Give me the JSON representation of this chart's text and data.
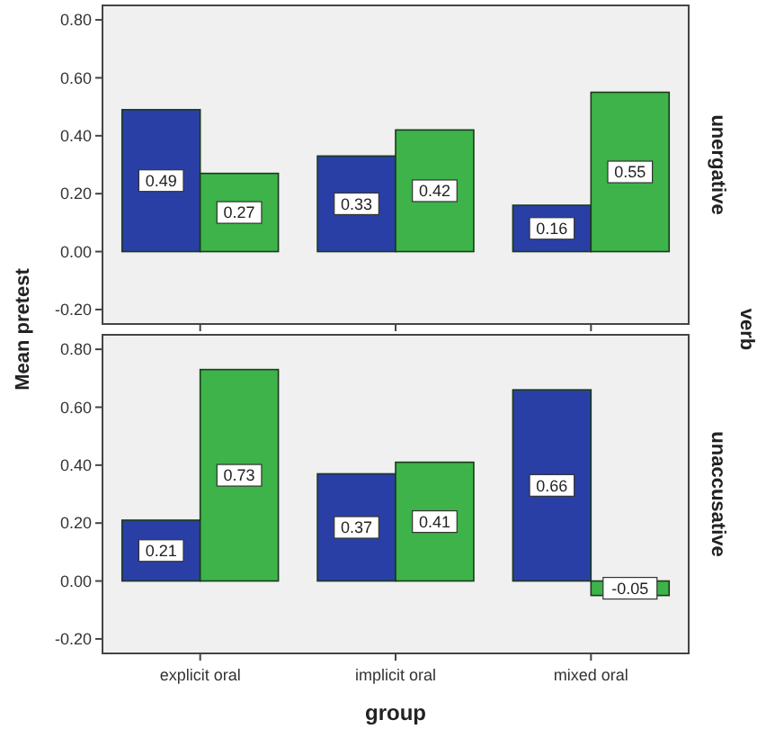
{
  "chart_data": [
    {
      "type": "bar",
      "ylabel": "Mean pretest",
      "y2label": "unergative",
      "annotations": [
        "verb"
      ],
      "categories": [
        null,
        null,
        null
      ],
      "series": [
        {
          "color": "#2a3fa6",
          "values": [
            0.49,
            0.33,
            0.16
          ]
        },
        {
          "color": "#3db34a",
          "values": [
            0.27,
            0.42,
            0.55
          ]
        }
      ],
      "ylim": [
        -0.25,
        0.85
      ],
      "yticks": [
        {
          "value": -0.2,
          "label": "-0.20"
        },
        {
          "value": 0,
          "label": "0.00"
        },
        {
          "value": 0.2,
          "label": "0.20"
        },
        {
          "value": 0.4,
          "label": "0.40"
        },
        {
          "value": 0.6,
          "label": "0.60"
        },
        {
          "value": 0.8,
          "label": "0.80"
        }
      ],
      "tick_labels": "y",
      "data_labels": true,
      "grid": false
    },
    {
      "type": "bar",
      "xlabel": "group",
      "y2label": "unaccusative",
      "categories": [
        "explicit oral",
        "implicit oral",
        "mixed oral"
      ],
      "series": [
        {
          "color": "#2a3fa6",
          "values": [
            0.21,
            0.37,
            0.66
          ]
        },
        {
          "color": "#3db34a",
          "values": [
            0.73,
            0.41,
            -0.05
          ]
        }
      ],
      "ylim": [
        -0.25,
        0.85
      ],
      "yticks": [
        {
          "value": -0.2,
          "label": "-0.20"
        },
        {
          "value": 0,
          "label": "0.00"
        },
        {
          "value": 0.2,
          "label": "0.20"
        },
        {
          "value": 0.4,
          "label": "0.40"
        },
        {
          "value": 0.6,
          "label": "0.60"
        },
        {
          "value": 0.8,
          "label": "0.80"
        }
      ],
      "data_labels": true,
      "grid": false
    }
  ]
}
